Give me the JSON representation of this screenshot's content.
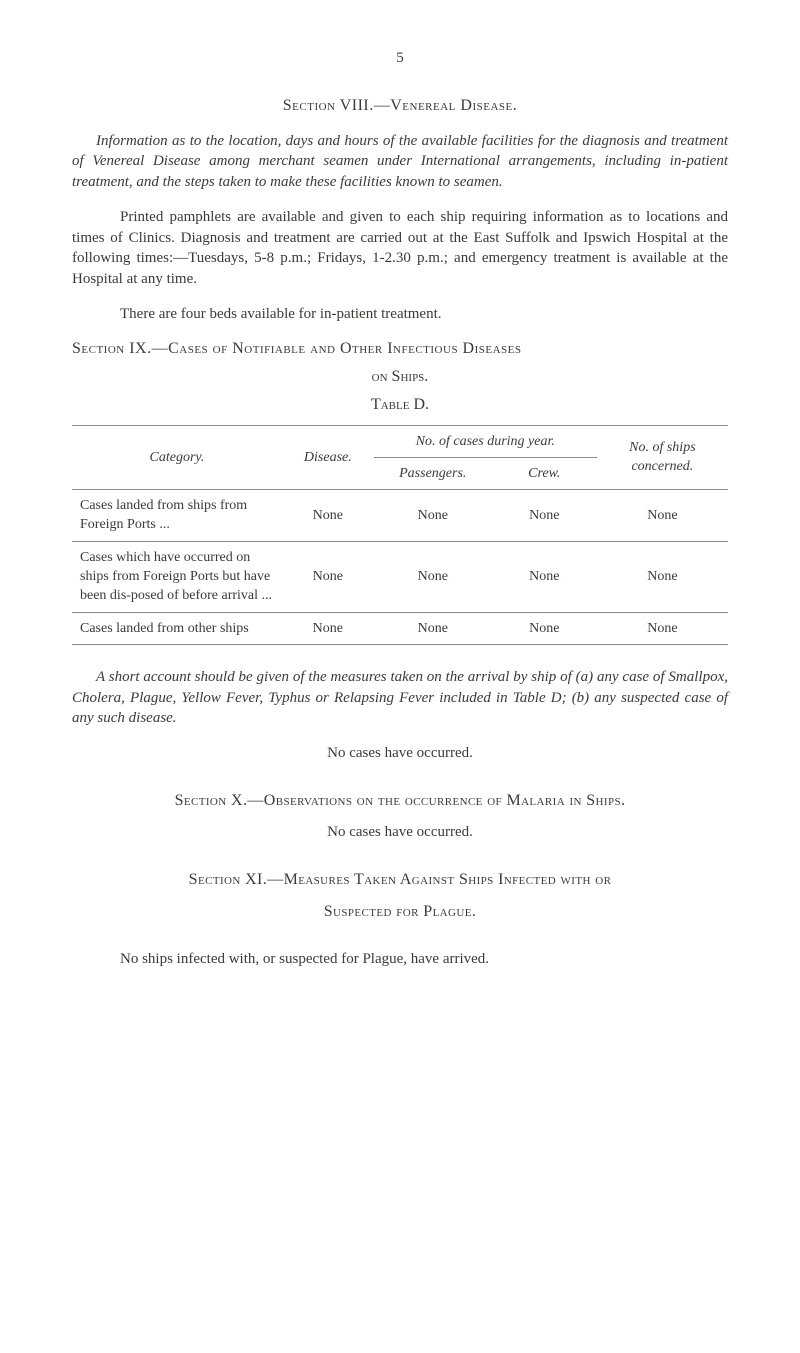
{
  "page_number": "5",
  "section_viii_heading": "Section VIII.—Venereal Disease.",
  "section_viii_italic": "Information as to the location, days and hours of the available facilities for the diagnosis and treatment of Venereal Disease among merchant seamen under International arrangements, including in-patient treatment, and the steps taken to make these facilities known to seamen.",
  "section_viii_p1": "Printed pamphlets are available and given to each ship requiring information as to locations and times of Clinics. Diagnosis and treatment are carried out at the East Suffolk and Ipswich Hospital at the following times:—Tuesdays, 5-8 p.m.; Fridays, 1-2.30 p.m.; and emergency treatment is available at the Hospital at any time.",
  "section_viii_p2": "There are four beds available for in-patient treatment.",
  "section_ix_heading": "Section IX.—Cases of Notifiable and Other Infectious Diseases",
  "section_ix_sub": "on Ships.",
  "table_caption": "Table D.",
  "table": {
    "head": {
      "category": "Category.",
      "disease": "Disease.",
      "cases_during_year": "No. of cases during year.",
      "passengers": "Passengers.",
      "crew": "Crew.",
      "ships_concerned": "No. of ships concerned."
    },
    "rows": [
      {
        "category": "Cases landed from ships from Foreign Ports ...",
        "disease": "None",
        "passengers": "None",
        "crew": "None",
        "ships": "None"
      },
      {
        "category": "Cases which have occurred on ships from Foreign Ports but have been dis-posed of before arrival ...",
        "disease": "None",
        "passengers": "None",
        "crew": "None",
        "ships": "None"
      },
      {
        "category": "Cases landed from other ships",
        "disease": "None",
        "passengers": "None",
        "crew": "None",
        "ships": "None"
      }
    ]
  },
  "short_account": "A short account should be given of the measures taken on the arrival by ship of (a) any case of Smallpox, Cholera, Plague, Yellow Fever, Typhus or Relapsing Fever included in Table D; (b) any suspected case of any such disease.",
  "no_cases_occurred": "No cases have occurred.",
  "section_x_heading": "Section X.—Observations on the occurrence of Malaria in Ships.",
  "section_x_body": "No cases have occurred.",
  "section_xi_heading_l1": "Section XI.—Measures Taken Against Ships Infected with or",
  "section_xi_heading_l2": "Suspected for Plague.",
  "section_xi_body": "No ships infected with, or suspected for Plague, have arrived."
}
